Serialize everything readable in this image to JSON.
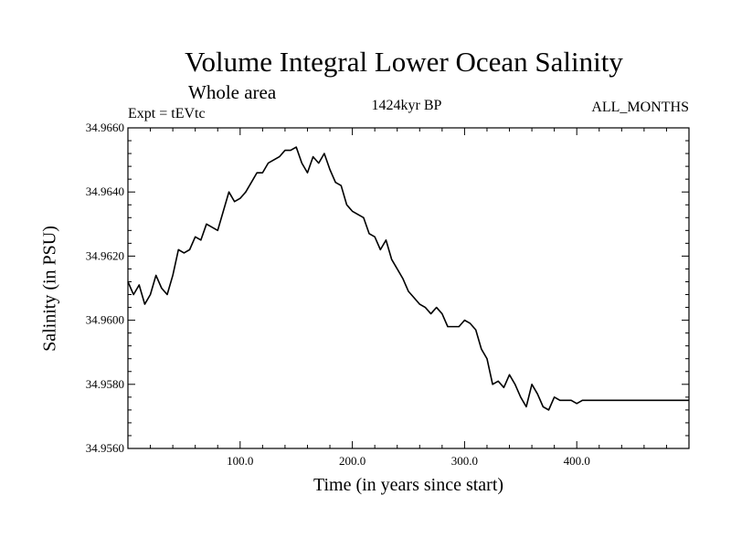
{
  "chart_data": {
    "type": "line",
    "title": "Volume Integral Lower Ocean Salinity",
    "subtitle": "Whole area",
    "left_label": "Expt = tEVtc",
    "center_label": "1424kyr BP",
    "right_label": "ALL_MONTHS",
    "xlabel": "Time (in years since start)",
    "ylabel": "Salinity (in PSU)",
    "xlim": [
      0,
      500
    ],
    "ylim": [
      34.956,
      34.966
    ],
    "xticks": [
      100,
      200,
      300,
      400
    ],
    "xtick_labels": [
      "100.0",
      "200.0",
      "300.0",
      "400.0"
    ],
    "yticks": [
      34.956,
      34.958,
      34.96,
      34.962,
      34.964,
      34.966
    ],
    "ytick_labels": [
      "34.9560",
      "34.9580",
      "34.9600",
      "34.9620",
      "34.9640",
      "34.9660"
    ],
    "series": [
      {
        "name": "salinity",
        "x": [
          0,
          5,
          10,
          15,
          20,
          25,
          30,
          35,
          40,
          45,
          50,
          55,
          60,
          65,
          70,
          75,
          80,
          85,
          90,
          95,
          100,
          105,
          110,
          115,
          120,
          125,
          130,
          135,
          140,
          145,
          150,
          155,
          160,
          165,
          170,
          175,
          180,
          185,
          190,
          195,
          200,
          205,
          210,
          215,
          220,
          225,
          230,
          235,
          240,
          245,
          250,
          255,
          260,
          265,
          270,
          275,
          280,
          285,
          290,
          295,
          300,
          305,
          310,
          315,
          320,
          325,
          330,
          335,
          340,
          345,
          350,
          355,
          360,
          365,
          370,
          375,
          380,
          385,
          390,
          395,
          400,
          405,
          410,
          415,
          420,
          425,
          430,
          435,
          440,
          445,
          450,
          455,
          460,
          465,
          470,
          475,
          480,
          485,
          490,
          495,
          500
        ],
        "values": [
          34.9612,
          34.9608,
          34.9611,
          34.9605,
          34.9608,
          34.9614,
          34.961,
          34.9608,
          34.9614,
          34.9622,
          34.9621,
          34.9622,
          34.9626,
          34.9625,
          34.963,
          34.9629,
          34.9628,
          34.9634,
          34.964,
          34.9637,
          34.9638,
          34.964,
          34.9643,
          34.9646,
          34.9646,
          34.9649,
          34.965,
          34.9651,
          34.9653,
          34.9653,
          34.9654,
          34.9649,
          34.9646,
          34.9651,
          34.9649,
          34.9652,
          34.9647,
          34.9643,
          34.9642,
          34.9636,
          34.9634,
          34.9633,
          34.9632,
          34.9627,
          34.9626,
          34.9622,
          34.9625,
          34.9619,
          34.9616,
          34.9613,
          34.9609,
          34.9607,
          34.9605,
          34.9604,
          34.9602,
          34.9604,
          34.9602,
          34.9598,
          34.9598,
          34.9598,
          34.96,
          34.9599,
          34.9597,
          34.9591,
          34.9588,
          34.958,
          34.9581,
          34.9579,
          34.9583,
          34.958,
          34.9576,
          34.9573,
          34.958,
          34.9577,
          34.9573,
          34.9572,
          34.9576,
          34.9575,
          34.9575,
          34.9575,
          34.9574,
          34.9575,
          34.9575,
          34.9575,
          34.9575,
          34.9575,
          34.9575,
          34.9575,
          34.9575,
          34.9575,
          34.9575,
          34.9575,
          34.9575,
          34.9575,
          34.9575,
          34.9575,
          34.9575,
          34.9575,
          34.9575,
          34.9575,
          34.9575
        ]
      }
    ]
  }
}
